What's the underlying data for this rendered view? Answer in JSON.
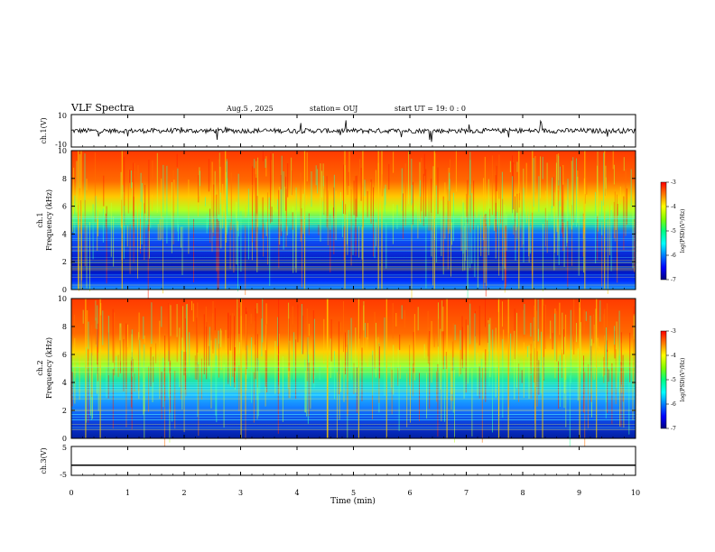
{
  "header": {
    "title": "VLF Spectra",
    "date": "Aug.5 , 2025",
    "station": "station= OUJ",
    "start": "start UT = 19: 0 : 0"
  },
  "colorbar": {
    "label": "log(PSD)(V²/Hz)",
    "ticks": [
      "-3",
      "-4",
      "-5",
      "-6",
      "-7"
    ],
    "colors": [
      "#000080",
      "#0000ff",
      "#0080ff",
      "#00ffff",
      "#00ff80",
      "#80ff00",
      "#ffff00",
      "#ff8000",
      "#ff0000"
    ]
  },
  "chart_data": [
    {
      "type": "line",
      "ylabel": "ch.1(V)",
      "ylim": [
        -10,
        10
      ],
      "yticks": [
        "10",
        "-10"
      ],
      "xlim": [
        0,
        10
      ],
      "description": "noisy waveform centered near 0 with occasional spikes"
    },
    {
      "type": "heatmap",
      "ylabel": "ch.1\nFrequency (kHz)",
      "ylim": [
        0,
        10
      ],
      "yticks": [
        "10",
        "8",
        "6",
        "4",
        "2",
        "0"
      ],
      "xlim": [
        0,
        10
      ],
      "zlim": [
        -7,
        -3
      ]
    },
    {
      "type": "heatmap",
      "ylabel": "ch.2\nFrequency (kHz)",
      "ylim": [
        0,
        10
      ],
      "yticks": [
        "10",
        "8",
        "6",
        "4",
        "2",
        "0"
      ],
      "xlim": [
        0,
        10
      ],
      "zlim": [
        -7,
        -3
      ]
    },
    {
      "type": "line",
      "ylabel": "ch.3(V)",
      "ylim": [
        -5,
        5
      ],
      "yticks": [
        "5",
        "-5"
      ],
      "xlim": [
        0,
        10
      ],
      "constant_value": -1.5
    }
  ],
  "xaxis": {
    "label": "Time (min)",
    "ticks": [
      "0",
      "1",
      "2",
      "3",
      "4",
      "5",
      "6",
      "7",
      "8",
      "9",
      "10"
    ]
  }
}
